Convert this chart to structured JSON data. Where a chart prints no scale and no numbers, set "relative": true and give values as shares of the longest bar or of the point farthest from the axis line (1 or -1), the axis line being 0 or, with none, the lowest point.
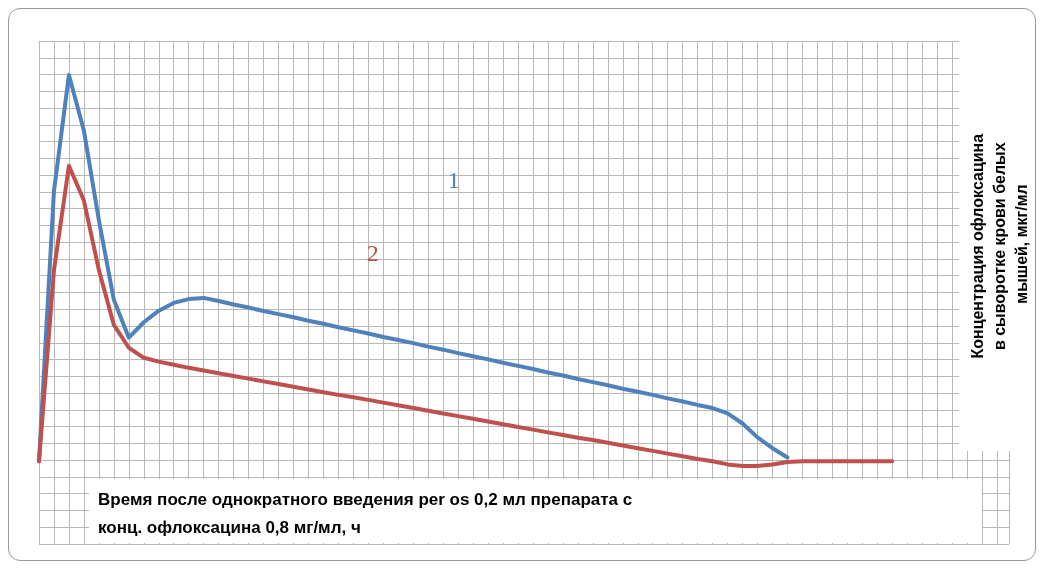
{
  "chart_data": {
    "type": "line",
    "relative": true,
    "xlabel": "Время после однократного введения per os 0,2 мл препарата с конц. офлоксацина 0,8 мг/мл, ч",
    "ylabel": "Концентрация офлоксацина в сыворотке крови белых мышей, мкг/мл",
    "grid": true,
    "marker": "none",
    "line_style": "solid",
    "categories": [
      null,
      null,
      null,
      null,
      null,
      null,
      null,
      null,
      null,
      null,
      null,
      null,
      null,
      null,
      null,
      null,
      null,
      null,
      null,
      null,
      null,
      null,
      null,
      null,
      null,
      null,
      null,
      null,
      null,
      null,
      null,
      null,
      null,
      null,
      null,
      null,
      null,
      null,
      null,
      null,
      null,
      null,
      null,
      null,
      null,
      null,
      null,
      null,
      null,
      null,
      null,
      null,
      null,
      null,
      null,
      null,
      null,
      null
    ],
    "series": [
      {
        "name": "1",
        "color": "#4f81bd",
        "values": [
          0,
          0.7,
          1,
          0.856,
          0.624,
          0.418,
          0.32,
          0.36,
          0.39,
          0.41,
          0.42,
          0.423,
          0.415,
          0.406,
          0.398,
          0.389,
          0.381,
          0.373,
          0.364,
          0.356,
          0.347,
          0.339,
          0.331,
          0.322,
          0.314,
          0.306,
          0.297,
          0.289,
          0.28,
          0.272,
          0.264,
          0.255,
          0.247,
          0.239,
          0.23,
          0.222,
          0.213,
          0.205,
          0.197,
          0.188,
          0.18,
          0.172,
          0.163,
          0.155,
          0.146,
          0.138,
          0.124,
          0.098,
          0.062,
          0.034,
          0.01,
          null,
          null,
          null,
          null,
          null,
          null,
          null
        ]
      },
      {
        "name": "2",
        "color": "#c0504d",
        "values": [
          0,
          0.495,
          0.765,
          0.675,
          0.495,
          0.353,
          0.294,
          0.268,
          0.258,
          0.25,
          0.242,
          0.235,
          0.228,
          0.221,
          0.214,
          0.207,
          0.2,
          0.193,
          0.186,
          0.179,
          0.172,
          0.166,
          0.159,
          0.152,
          0.145,
          0.138,
          0.131,
          0.124,
          0.117,
          0.11,
          0.103,
          0.096,
          0.089,
          0.082,
          0.075,
          0.068,
          0.061,
          0.055,
          0.048,
          0.041,
          0.034,
          0.027,
          0.02,
          0.013,
          0.006,
          0,
          -0.008,
          -0.012,
          -0.012,
          -0.008,
          -0.002,
          0,
          0,
          0,
          0,
          0,
          0,
          0
        ]
      }
    ]
  }
}
